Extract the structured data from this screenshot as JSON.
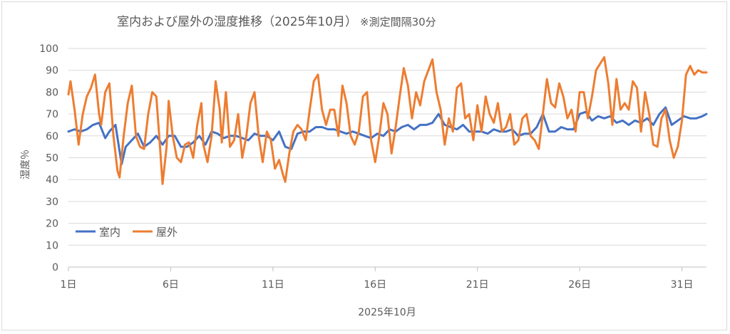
{
  "chart_data": {
    "type": "line",
    "title": "室内および屋外の湿度推移（2025年10月）",
    "subtitle": "※測定間隔30分",
    "xlabel": "2025年10月",
    "ylabel": "湿度％",
    "ylim": [
      0,
      100
    ],
    "yticks": [
      "0",
      "10",
      "20",
      "30",
      "40",
      "50",
      "60",
      "70",
      "80",
      "90",
      "100"
    ],
    "xlim": [
      1,
      32.2
    ],
    "xticks": [
      {
        "label": "1日",
        "value": 1
      },
      {
        "label": "6日",
        "value": 6
      },
      {
        "label": "11日",
        "value": 11
      },
      {
        "label": "16日",
        "value": 16
      },
      {
        "label": "21日",
        "value": 21
      },
      {
        "label": "26日",
        "value": 26
      },
      {
        "label": "31日",
        "value": 31
      }
    ],
    "grid": true,
    "legend": "bottom-left",
    "series": [
      {
        "name": "室内",
        "color": "#4472c4",
        "points": [
          [
            1,
            62
          ],
          [
            1.3,
            63
          ],
          [
            1.6,
            62
          ],
          [
            1.9,
            63
          ],
          [
            2.2,
            65
          ],
          [
            2.5,
            66
          ],
          [
            2.8,
            59
          ],
          [
            3.0,
            62
          ],
          [
            3.3,
            65
          ],
          [
            3.6,
            47
          ],
          [
            3.8,
            55
          ],
          [
            4.1,
            58
          ],
          [
            4.4,
            61
          ],
          [
            4.7,
            55
          ],
          [
            5.0,
            57
          ],
          [
            5.3,
            60
          ],
          [
            5.6,
            56
          ],
          [
            5.9,
            60
          ],
          [
            6.2,
            60
          ],
          [
            6.5,
            55
          ],
          [
            6.8,
            55
          ],
          [
            7.1,
            57
          ],
          [
            7.4,
            60
          ],
          [
            7.7,
            56
          ],
          [
            8.0,
            62
          ],
          [
            8.3,
            61
          ],
          [
            8.6,
            59
          ],
          [
            8.9,
            60
          ],
          [
            9.2,
            60
          ],
          [
            9.5,
            59
          ],
          [
            9.8,
            58
          ],
          [
            10.1,
            61
          ],
          [
            10.4,
            60
          ],
          [
            10.7,
            60
          ],
          [
            11.0,
            58
          ],
          [
            11.3,
            62
          ],
          [
            11.6,
            55
          ],
          [
            11.9,
            54
          ],
          [
            12.2,
            61
          ],
          [
            12.5,
            62
          ],
          [
            12.8,
            62
          ],
          [
            13.1,
            64
          ],
          [
            13.4,
            64
          ],
          [
            13.7,
            63
          ],
          [
            14.0,
            63
          ],
          [
            14.3,
            62
          ],
          [
            14.6,
            61
          ],
          [
            14.9,
            62
          ],
          [
            15.2,
            61
          ],
          [
            15.5,
            60
          ],
          [
            15.8,
            59
          ],
          [
            16.1,
            61
          ],
          [
            16.4,
            60
          ],
          [
            16.7,
            63
          ],
          [
            17.0,
            62
          ],
          [
            17.3,
            64
          ],
          [
            17.6,
            65
          ],
          [
            17.9,
            63
          ],
          [
            18.2,
            65
          ],
          [
            18.5,
            65
          ],
          [
            18.8,
            66
          ],
          [
            19.1,
            70
          ],
          [
            19.4,
            65
          ],
          [
            19.7,
            64
          ],
          [
            20.0,
            63
          ],
          [
            20.3,
            65
          ],
          [
            20.6,
            62
          ],
          [
            20.9,
            62
          ],
          [
            21.2,
            62
          ],
          [
            21.5,
            61
          ],
          [
            21.8,
            63
          ],
          [
            22.1,
            62
          ],
          [
            22.4,
            62
          ],
          [
            22.7,
            63
          ],
          [
            23.0,
            60
          ],
          [
            23.3,
            61
          ],
          [
            23.6,
            61
          ],
          [
            23.9,
            64
          ],
          [
            24.2,
            70
          ],
          [
            24.5,
            62
          ],
          [
            24.8,
            62
          ],
          [
            25.1,
            64
          ],
          [
            25.4,
            63
          ],
          [
            25.7,
            63
          ],
          [
            26.0,
            70
          ],
          [
            26.3,
            71
          ],
          [
            26.6,
            67
          ],
          [
            26.9,
            69
          ],
          [
            27.2,
            68
          ],
          [
            27.5,
            69
          ],
          [
            27.8,
            66
          ],
          [
            28.1,
            67
          ],
          [
            28.4,
            65
          ],
          [
            28.7,
            67
          ],
          [
            29.0,
            66
          ],
          [
            29.3,
            68
          ],
          [
            29.6,
            65
          ],
          [
            29.9,
            70
          ],
          [
            30.2,
            73
          ],
          [
            30.5,
            65
          ],
          [
            30.8,
            67
          ],
          [
            31.1,
            69
          ],
          [
            31.4,
            68
          ],
          [
            31.7,
            68
          ],
          [
            32.0,
            69
          ],
          [
            32.2,
            70
          ]
        ]
      },
      {
        "name": "屋外",
        "color": "#ed7d31",
        "points": [
          [
            1,
            79
          ],
          [
            1.1,
            85
          ],
          [
            1.3,
            72
          ],
          [
            1.5,
            56
          ],
          [
            1.7,
            70
          ],
          [
            1.9,
            78
          ],
          [
            2.1,
            82
          ],
          [
            2.3,
            88
          ],
          [
            2.5,
            70
          ],
          [
            2.6,
            65
          ],
          [
            2.8,
            80
          ],
          [
            3.0,
            84
          ],
          [
            3.2,
            60
          ],
          [
            3.4,
            44
          ],
          [
            3.5,
            41
          ],
          [
            3.7,
            60
          ],
          [
            3.9,
            75
          ],
          [
            4.1,
            83
          ],
          [
            4.3,
            60
          ],
          [
            4.5,
            55
          ],
          [
            4.7,
            54
          ],
          [
            4.9,
            70
          ],
          [
            5.1,
            80
          ],
          [
            5.3,
            78
          ],
          [
            5.5,
            52
          ],
          [
            5.6,
            38
          ],
          [
            5.8,
            55
          ],
          [
            5.9,
            76
          ],
          [
            6.1,
            60
          ],
          [
            6.3,
            50
          ],
          [
            6.5,
            48
          ],
          [
            6.7,
            56
          ],
          [
            6.9,
            57
          ],
          [
            7.1,
            50
          ],
          [
            7.3,
            65
          ],
          [
            7.5,
            75
          ],
          [
            7.6,
            56
          ],
          [
            7.8,
            48
          ],
          [
            8.0,
            60
          ],
          [
            8.2,
            85
          ],
          [
            8.4,
            72
          ],
          [
            8.5,
            57
          ],
          [
            8.7,
            80
          ],
          [
            8.9,
            55
          ],
          [
            9.1,
            58
          ],
          [
            9.3,
            70
          ],
          [
            9.5,
            50
          ],
          [
            9.7,
            60
          ],
          [
            9.9,
            75
          ],
          [
            10.1,
            80
          ],
          [
            10.3,
            60
          ],
          [
            10.5,
            48
          ],
          [
            10.7,
            62
          ],
          [
            10.9,
            58
          ],
          [
            11.1,
            45
          ],
          [
            11.3,
            49
          ],
          [
            11.5,
            42
          ],
          [
            11.6,
            39
          ],
          [
            11.8,
            52
          ],
          [
            12.0,
            62
          ],
          [
            12.2,
            65
          ],
          [
            12.4,
            63
          ],
          [
            12.6,
            58
          ],
          [
            12.8,
            72
          ],
          [
            13.0,
            85
          ],
          [
            13.2,
            88
          ],
          [
            13.4,
            72
          ],
          [
            13.6,
            65
          ],
          [
            13.8,
            72
          ],
          [
            14.0,
            72
          ],
          [
            14.2,
            60
          ],
          [
            14.4,
            83
          ],
          [
            14.6,
            75
          ],
          [
            14.8,
            60
          ],
          [
            15.0,
            56
          ],
          [
            15.2,
            62
          ],
          [
            15.4,
            78
          ],
          [
            15.6,
            80
          ],
          [
            15.8,
            58
          ],
          [
            16.0,
            48
          ],
          [
            16.2,
            60
          ],
          [
            16.4,
            75
          ],
          [
            16.6,
            70
          ],
          [
            16.8,
            52
          ],
          [
            17.0,
            64
          ],
          [
            17.2,
            78
          ],
          [
            17.4,
            91
          ],
          [
            17.6,
            83
          ],
          [
            17.8,
            68
          ],
          [
            18.0,
            80
          ],
          [
            18.2,
            74
          ],
          [
            18.4,
            85
          ],
          [
            18.6,
            90
          ],
          [
            18.8,
            95
          ],
          [
            19.0,
            80
          ],
          [
            19.2,
            72
          ],
          [
            19.4,
            56
          ],
          [
            19.6,
            68
          ],
          [
            19.8,
            62
          ],
          [
            20.0,
            82
          ],
          [
            20.2,
            84
          ],
          [
            20.4,
            68
          ],
          [
            20.6,
            70
          ],
          [
            20.8,
            58
          ],
          [
            21.0,
            74
          ],
          [
            21.2,
            62
          ],
          [
            21.4,
            78
          ],
          [
            21.6,
            70
          ],
          [
            21.8,
            66
          ],
          [
            22.0,
            75
          ],
          [
            22.2,
            62
          ],
          [
            22.4,
            64
          ],
          [
            22.6,
            70
          ],
          [
            22.8,
            56
          ],
          [
            23.0,
            58
          ],
          [
            23.2,
            68
          ],
          [
            23.4,
            70
          ],
          [
            23.6,
            60
          ],
          [
            23.8,
            58
          ],
          [
            24.0,
            54
          ],
          [
            24.2,
            70
          ],
          [
            24.4,
            86
          ],
          [
            24.6,
            75
          ],
          [
            24.8,
            73
          ],
          [
            25.0,
            84
          ],
          [
            25.2,
            78
          ],
          [
            25.4,
            68
          ],
          [
            25.6,
            72
          ],
          [
            25.8,
            62
          ],
          [
            26.0,
            80
          ],
          [
            26.2,
            80
          ],
          [
            26.4,
            68
          ],
          [
            26.6,
            78
          ],
          [
            26.8,
            90
          ],
          [
            27.0,
            93
          ],
          [
            27.2,
            96
          ],
          [
            27.4,
            84
          ],
          [
            27.6,
            65
          ],
          [
            27.8,
            86
          ],
          [
            28.0,
            72
          ],
          [
            28.2,
            75
          ],
          [
            28.4,
            72
          ],
          [
            28.6,
            85
          ],
          [
            28.8,
            82
          ],
          [
            29.0,
            62
          ],
          [
            29.2,
            80
          ],
          [
            29.4,
            70
          ],
          [
            29.6,
            56
          ],
          [
            29.8,
            55
          ],
          [
            30.0,
            68
          ],
          [
            30.2,
            72
          ],
          [
            30.4,
            58
          ],
          [
            30.6,
            50
          ],
          [
            30.8,
            55
          ],
          [
            31.0,
            67
          ],
          [
            31.2,
            88
          ],
          [
            31.4,
            92
          ],
          [
            31.6,
            88
          ],
          [
            31.8,
            90
          ],
          [
            32.0,
            89
          ],
          [
            32.2,
            89
          ]
        ]
      }
    ]
  }
}
